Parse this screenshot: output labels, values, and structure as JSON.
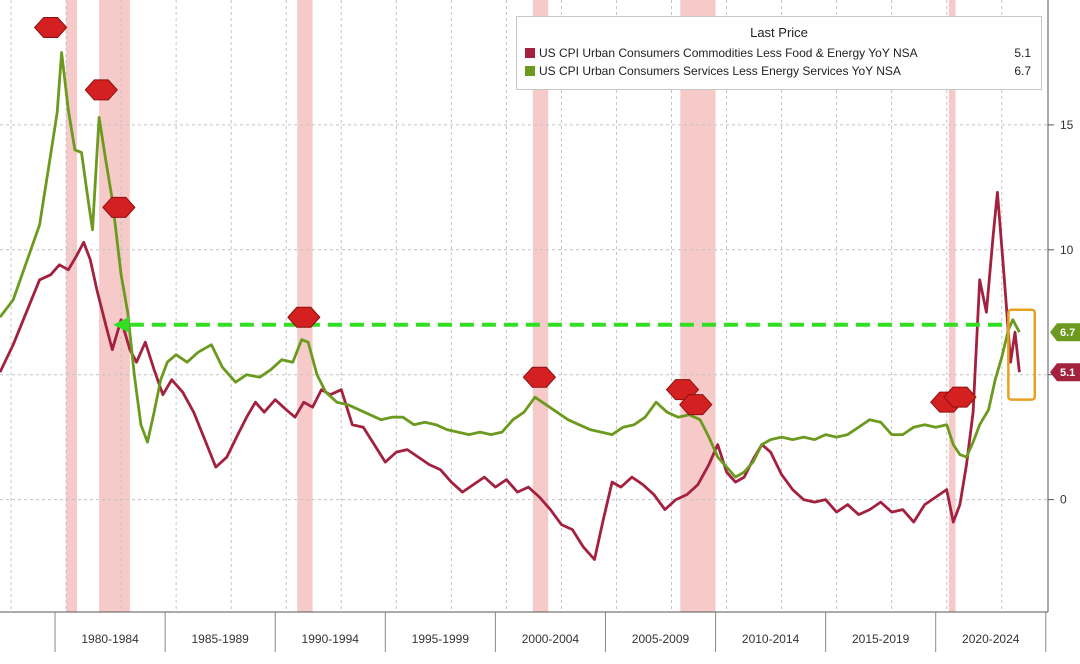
{
  "chart_data": {
    "type": "line",
    "legend": {
      "title": "Last Price",
      "placement": "top-right"
    },
    "series": [
      {
        "name": "US CPI Urban Consumers Commodities Less Food & Energy YoY NSA",
        "last": "5.1",
        "color": "#a3213f",
        "points": [
          [
            1977,
            5.1
          ],
          [
            1977.6,
            6.2
          ],
          [
            1978.2,
            7.5
          ],
          [
            1978.8,
            8.8
          ],
          [
            1979.3,
            9.0
          ],
          [
            1979.7,
            9.4
          ],
          [
            1980.1,
            9.2
          ],
          [
            1980.5,
            9.8
          ],
          [
            1980.8,
            10.3
          ],
          [
            1981.1,
            9.6
          ],
          [
            1981.4,
            8.4
          ],
          [
            1981.8,
            7.0
          ],
          [
            1982.1,
            6.0
          ],
          [
            1982.5,
            7.2
          ],
          [
            1982.9,
            6.0
          ],
          [
            1983.2,
            5.5
          ],
          [
            1983.6,
            6.3
          ],
          [
            1984.0,
            5.2
          ],
          [
            1984.4,
            4.2
          ],
          [
            1984.8,
            4.8
          ],
          [
            1985.3,
            4.3
          ],
          [
            1985.8,
            3.5
          ],
          [
            1986.3,
            2.4
          ],
          [
            1986.8,
            1.3
          ],
          [
            1987.3,
            1.7
          ],
          [
            1987.8,
            2.6
          ],
          [
            1988.2,
            3.3
          ],
          [
            1988.6,
            3.9
          ],
          [
            1989.0,
            3.5
          ],
          [
            1989.5,
            4.0
          ],
          [
            1990.0,
            3.6
          ],
          [
            1990.4,
            3.3
          ],
          [
            1990.8,
            3.9
          ],
          [
            1991.2,
            3.7
          ],
          [
            1991.6,
            4.4
          ],
          [
            1992.0,
            4.2
          ],
          [
            1992.5,
            4.4
          ],
          [
            1993.0,
            3.0
          ],
          [
            1993.5,
            2.9
          ],
          [
            1994.0,
            2.2
          ],
          [
            1994.5,
            1.5
          ],
          [
            1995.0,
            1.9
          ],
          [
            1995.5,
            2.0
          ],
          [
            1996.0,
            1.7
          ],
          [
            1996.5,
            1.4
          ],
          [
            1997.0,
            1.2
          ],
          [
            1997.5,
            0.7
          ],
          [
            1998.0,
            0.3
          ],
          [
            1998.5,
            0.6
          ],
          [
            1999.0,
            0.9
          ],
          [
            1999.5,
            0.5
          ],
          [
            2000.0,
            0.8
          ],
          [
            2000.5,
            0.3
          ],
          [
            2001.0,
            0.5
          ],
          [
            2001.5,
            0.1
          ],
          [
            2002.0,
            -0.4
          ],
          [
            2002.5,
            -1.0
          ],
          [
            2003.0,
            -1.2
          ],
          [
            2003.5,
            -1.9
          ],
          [
            2004.0,
            -2.4
          ],
          [
            2004.4,
            -0.8
          ],
          [
            2004.8,
            0.7
          ],
          [
            2005.2,
            0.5
          ],
          [
            2005.7,
            0.9
          ],
          [
            2006.2,
            0.6
          ],
          [
            2006.7,
            0.2
          ],
          [
            2007.2,
            -0.4
          ],
          [
            2007.7,
            0.0
          ],
          [
            2008.2,
            0.2
          ],
          [
            2008.7,
            0.6
          ],
          [
            2009.2,
            1.4
          ],
          [
            2009.6,
            2.2
          ],
          [
            2010.0,
            1.1
          ],
          [
            2010.4,
            0.7
          ],
          [
            2010.8,
            0.9
          ],
          [
            2011.2,
            1.6
          ],
          [
            2011.6,
            2.2
          ],
          [
            2012.0,
            1.9
          ],
          [
            2012.5,
            1.0
          ],
          [
            2013.0,
            0.4
          ],
          [
            2013.5,
            0.0
          ],
          [
            2014.0,
            -0.1
          ],
          [
            2014.5,
            0.0
          ],
          [
            2015.0,
            -0.5
          ],
          [
            2015.5,
            -0.2
          ],
          [
            2016.0,
            -0.6
          ],
          [
            2016.5,
            -0.4
          ],
          [
            2017.0,
            -0.1
          ],
          [
            2017.5,
            -0.5
          ],
          [
            2018.0,
            -0.4
          ],
          [
            2018.5,
            -0.9
          ],
          [
            2019.0,
            -0.2
          ],
          [
            2019.5,
            0.1
          ],
          [
            2020.0,
            0.4
          ],
          [
            2020.3,
            -0.9
          ],
          [
            2020.6,
            -0.2
          ],
          [
            2020.9,
            1.4
          ],
          [
            2021.2,
            3.5
          ],
          [
            2021.5,
            8.8
          ],
          [
            2021.8,
            7.5
          ],
          [
            2022.1,
            10.5
          ],
          [
            2022.3,
            12.3
          ],
          [
            2022.6,
            9.0
          ],
          [
            2022.9,
            5.5
          ],
          [
            2023.1,
            6.7
          ],
          [
            2023.3,
            5.1
          ]
        ]
      },
      {
        "name": "US CPI Urban Consumers Services Less Energy Services YoY NSA",
        "last": "6.7",
        "color": "#6b9a1f",
        "points": [
          [
            1977,
            7.3
          ],
          [
            1977.6,
            8.0
          ],
          [
            1978.2,
            9.5
          ],
          [
            1978.8,
            11.0
          ],
          [
            1979.3,
            13.8
          ],
          [
            1979.6,
            15.5
          ],
          [
            1979.8,
            17.9
          ],
          [
            1980.1,
            15.6
          ],
          [
            1980.4,
            14.0
          ],
          [
            1980.7,
            13.9
          ],
          [
            1981.0,
            12.0
          ],
          [
            1981.2,
            10.8
          ],
          [
            1981.5,
            15.3
          ],
          [
            1981.8,
            13.6
          ],
          [
            1982.1,
            12.0
          ],
          [
            1982.5,
            9.0
          ],
          [
            1982.8,
            7.5
          ],
          [
            1983.1,
            5.0
          ],
          [
            1983.4,
            3.0
          ],
          [
            1983.7,
            2.3
          ],
          [
            1984.0,
            3.5
          ],
          [
            1984.3,
            4.8
          ],
          [
            1984.6,
            5.5
          ],
          [
            1985.0,
            5.8
          ],
          [
            1985.5,
            5.5
          ],
          [
            1986.0,
            5.9
          ],
          [
            1986.6,
            6.2
          ],
          [
            1987.1,
            5.3
          ],
          [
            1987.7,
            4.7
          ],
          [
            1988.2,
            5.0
          ],
          [
            1988.8,
            4.9
          ],
          [
            1989.3,
            5.2
          ],
          [
            1989.8,
            5.6
          ],
          [
            1990.3,
            5.5
          ],
          [
            1990.7,
            6.4
          ],
          [
            1991.0,
            6.3
          ],
          [
            1991.4,
            5.0
          ],
          [
            1991.8,
            4.3
          ],
          [
            1992.3,
            3.9
          ],
          [
            1992.8,
            3.8
          ],
          [
            1993.3,
            3.6
          ],
          [
            1993.8,
            3.4
          ],
          [
            1994.3,
            3.2
          ],
          [
            1994.8,
            3.3
          ],
          [
            1995.3,
            3.3
          ],
          [
            1995.8,
            3.0
          ],
          [
            1996.3,
            3.1
          ],
          [
            1996.8,
            3.0
          ],
          [
            1997.3,
            2.8
          ],
          [
            1997.8,
            2.7
          ],
          [
            1998.3,
            2.6
          ],
          [
            1998.8,
            2.7
          ],
          [
            1999.3,
            2.6
          ],
          [
            1999.8,
            2.7
          ],
          [
            2000.3,
            3.2
          ],
          [
            2000.8,
            3.5
          ],
          [
            2001.3,
            4.1
          ],
          [
            2001.8,
            3.8
          ],
          [
            2002.3,
            3.5
          ],
          [
            2002.8,
            3.2
          ],
          [
            2003.3,
            3.0
          ],
          [
            2003.8,
            2.8
          ],
          [
            2004.3,
            2.7
          ],
          [
            2004.8,
            2.6
          ],
          [
            2005.3,
            2.9
          ],
          [
            2005.8,
            3.0
          ],
          [
            2006.3,
            3.3
          ],
          [
            2006.8,
            3.9
          ],
          [
            2007.3,
            3.5
          ],
          [
            2007.8,
            3.3
          ],
          [
            2008.3,
            3.4
          ],
          [
            2008.8,
            3.2
          ],
          [
            2009.2,
            2.5
          ],
          [
            2009.6,
            1.7
          ],
          [
            2010.0,
            1.3
          ],
          [
            2010.4,
            0.9
          ],
          [
            2010.8,
            1.1
          ],
          [
            2011.2,
            1.5
          ],
          [
            2011.6,
            2.2
          ],
          [
            2012.0,
            2.4
          ],
          [
            2012.5,
            2.5
          ],
          [
            2013.0,
            2.4
          ],
          [
            2013.5,
            2.5
          ],
          [
            2014.0,
            2.4
          ],
          [
            2014.5,
            2.6
          ],
          [
            2015.0,
            2.5
          ],
          [
            2015.5,
            2.6
          ],
          [
            2016.0,
            2.9
          ],
          [
            2016.5,
            3.2
          ],
          [
            2017.0,
            3.1
          ],
          [
            2017.5,
            2.6
          ],
          [
            2018.0,
            2.6
          ],
          [
            2018.5,
            2.9
          ],
          [
            2019.0,
            3.0
          ],
          [
            2019.5,
            2.9
          ],
          [
            2020.0,
            3.0
          ],
          [
            2020.3,
            2.2
          ],
          [
            2020.6,
            1.8
          ],
          [
            2020.9,
            1.7
          ],
          [
            2021.2,
            2.3
          ],
          [
            2021.5,
            3.0
          ],
          [
            2021.9,
            3.6
          ],
          [
            2022.2,
            4.8
          ],
          [
            2022.5,
            5.7
          ],
          [
            2022.8,
            6.8
          ],
          [
            2023.0,
            7.2
          ],
          [
            2023.3,
            6.7
          ]
        ]
      }
    ],
    "x_tick_labels": [
      "1980-1984",
      "1985-1989",
      "1990-1994",
      "1995-1999",
      "2000-2004",
      "2005-2009",
      "2010-2014",
      "2015-2019",
      "2020-2024"
    ],
    "y_tick_labels": [
      "0",
      "5",
      "10",
      "15"
    ],
    "y_tick_values": [
      0,
      5,
      10,
      15
    ],
    "ylim": [
      -4.5,
      20
    ],
    "xlim": [
      1977,
      2024.6
    ],
    "grid": true,
    "recessions": [
      [
        1980.0,
        1980.5
      ],
      [
        1981.5,
        1982.9
      ],
      [
        1990.5,
        1991.2
      ],
      [
        2001.2,
        2001.9
      ],
      [
        2007.9,
        2009.5
      ],
      [
        2020.1,
        2020.4
      ]
    ],
    "value_badges": [
      {
        "label": "6.7",
        "value": 6.7,
        "color": "#6b9a1f"
      },
      {
        "label": "5.1",
        "value": 5.1,
        "color": "#a3213f"
      }
    ],
    "annotations": {
      "reference_value": 7.0,
      "reference_color": "#33dd22",
      "highlight_color": "#e8a020",
      "marker_color": "#d42020",
      "markers": [
        [
          1979.3,
          18.9
        ],
        [
          1981.6,
          16.4
        ],
        [
          1982.4,
          11.7
        ],
        [
          1990.8,
          7.3
        ],
        [
          2001.5,
          4.9
        ],
        [
          2008.0,
          4.4
        ],
        [
          2008.6,
          3.8
        ],
        [
          2020.0,
          3.9
        ],
        [
          2020.6,
          4.1
        ]
      ]
    }
  }
}
